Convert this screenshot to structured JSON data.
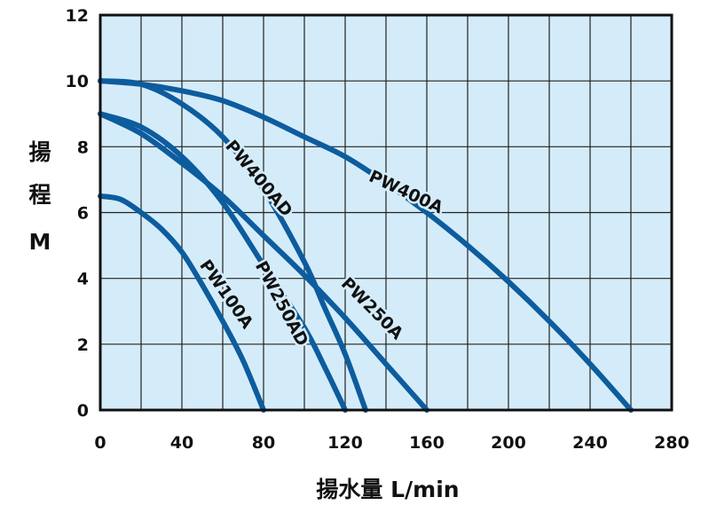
{
  "chart_data": {
    "type": "line",
    "title": "",
    "xlabel": "揚水量 L/min",
    "ylabel_lines": [
      "揚",
      "程",
      "M"
    ],
    "xlim": [
      0,
      280
    ],
    "ylim": [
      0,
      12
    ],
    "xticks": [
      "0",
      "40",
      "80",
      "120",
      "160",
      "200",
      "240",
      "280"
    ],
    "yticks": [
      "0",
      "2",
      "4",
      "6",
      "8",
      "10",
      "12"
    ],
    "grid": true,
    "colors": {
      "line": "#0d5c9e",
      "background": "#d4ecf9",
      "grid": "#222222"
    },
    "series": [
      {
        "name": "PW400A",
        "points": [
          [
            0,
            10
          ],
          [
            20,
            9.9
          ],
          [
            40,
            9.7
          ],
          [
            60,
            9.4
          ],
          [
            80,
            8.9
          ],
          [
            100,
            8.3
          ],
          [
            120,
            7.7
          ],
          [
            140,
            6.9
          ],
          [
            160,
            6.0
          ],
          [
            180,
            5.0
          ],
          [
            200,
            3.9
          ],
          [
            220,
            2.7
          ],
          [
            240,
            1.4
          ],
          [
            260,
            0
          ]
        ]
      },
      {
        "name": "PW400AD",
        "points": [
          [
            0,
            10
          ],
          [
            20,
            9.9
          ],
          [
            40,
            9.3
          ],
          [
            60,
            8.3
          ],
          [
            80,
            6.7
          ],
          [
            100,
            4.5
          ],
          [
            110,
            3.1
          ],
          [
            120,
            1.7
          ],
          [
            130,
            0
          ]
        ]
      },
      {
        "name": "PW250A",
        "points": [
          [
            0,
            9
          ],
          [
            20,
            8.4
          ],
          [
            40,
            7.5
          ],
          [
            60,
            6.5
          ],
          [
            80,
            5.3
          ],
          [
            100,
            4.1
          ],
          [
            120,
            2.8
          ],
          [
            140,
            1.4
          ],
          [
            160,
            0
          ]
        ]
      },
      {
        "name": "PW250AD",
        "points": [
          [
            0,
            9
          ],
          [
            20,
            8.6
          ],
          [
            40,
            7.7
          ],
          [
            60,
            6.3
          ],
          [
            80,
            4.4
          ],
          [
            100,
            2.5
          ],
          [
            110,
            1.3
          ],
          [
            120,
            0
          ]
        ]
      },
      {
        "name": "PW100A",
        "points": [
          [
            0,
            6.5
          ],
          [
            10,
            6.4
          ],
          [
            20,
            6.0
          ],
          [
            30,
            5.5
          ],
          [
            40,
            4.8
          ],
          [
            50,
            3.8
          ],
          [
            60,
            2.7
          ],
          [
            70,
            1.5
          ],
          [
            80,
            0
          ]
        ]
      }
    ]
  }
}
